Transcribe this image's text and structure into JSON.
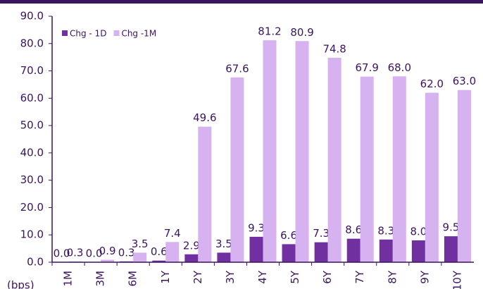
{
  "chart_data": {
    "type": "bar",
    "y_unit_label": "(bps)",
    "categories": [
      "1M",
      "3M",
      "6M",
      "1Y",
      "2Y",
      "3Y",
      "4Y",
      "5Y",
      "6Y",
      "7Y",
      "8Y",
      "9Y",
      "10Y"
    ],
    "series": [
      {
        "name": "Chg - 1D",
        "color": "#7030a0",
        "values": [
          0.0,
          0.0,
          0.3,
          0.6,
          2.9,
          3.5,
          9.3,
          6.6,
          7.3,
          8.6,
          8.3,
          8.0,
          9.5
        ],
        "value_labels": [
          "0.0",
          "0.0",
          "0.3",
          "0.6",
          "2.9",
          "3.5",
          "9.3",
          "6.6",
          "7.3",
          "8.6",
          "8.3",
          "8.0",
          "9.5"
        ]
      },
      {
        "name": "Chg -1M",
        "color": "#d7b2f0",
        "values": [
          0.3,
          0.9,
          3.5,
          7.4,
          49.6,
          67.6,
          81.2,
          80.9,
          74.8,
          67.9,
          68.0,
          62.0,
          63.0
        ],
        "value_labels": [
          "0.3",
          "0.9",
          "3.5",
          "7.4",
          "49.6",
          "67.6",
          "81.2",
          "80.9",
          "74.8",
          "67.9",
          "68.0",
          "62.0",
          "63.0"
        ]
      }
    ],
    "ylim": [
      0,
      90
    ],
    "yticks": [
      {
        "value": 0,
        "label": "0.0"
      },
      {
        "value": 10,
        "label": "10.0"
      },
      {
        "value": 20,
        "label": "20.0"
      },
      {
        "value": 30,
        "label": "30.0"
      },
      {
        "value": 40,
        "label": "40.0"
      },
      {
        "value": 50,
        "label": "50.0"
      },
      {
        "value": 60,
        "label": "60.0"
      },
      {
        "value": 70,
        "label": "70.0"
      },
      {
        "value": 80,
        "label": "80.0"
      },
      {
        "value": 90,
        "label": "90.0"
      }
    ],
    "legend": "top-left"
  }
}
